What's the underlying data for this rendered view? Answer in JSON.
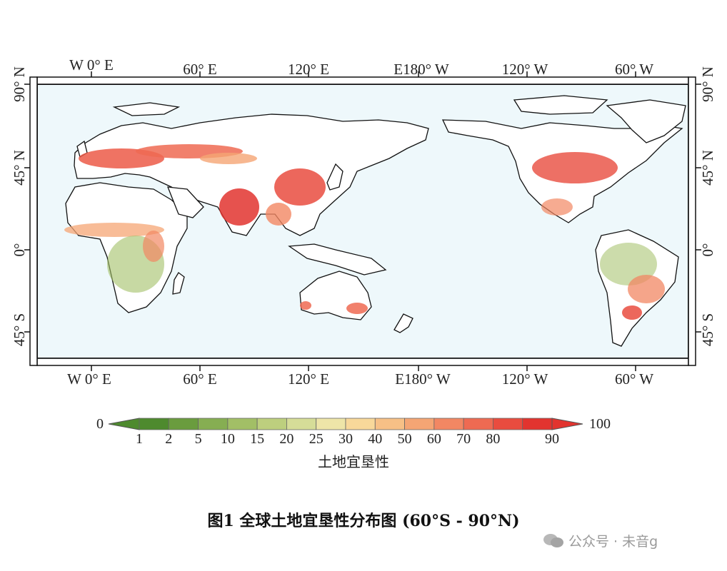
{
  "map": {
    "top_axis_labels": [
      "W 0° E",
      "60° E",
      "120° E",
      "E180° W",
      "120° W",
      "60° W"
    ],
    "bottom_axis_labels": [
      "W 0° E",
      "60° E",
      "120° E",
      "E180° W",
      "120° W",
      "60° W"
    ],
    "left_axis_labels": [
      "90° N",
      "45° N",
      "0°",
      "45° S"
    ],
    "right_axis_labels": [
      "90° N",
      "45° N",
      "0°",
      "45° S"
    ],
    "colors": {
      "ocean": "#eef8fb",
      "coast": "#111111",
      "no_data_land": "#ffffff"
    }
  },
  "legend": {
    "min_label": "0",
    "max_label": "100",
    "tick_labels": [
      "1",
      "2",
      "5",
      "10",
      "15",
      "20",
      "25",
      "30",
      "40",
      "50",
      "60",
      "70",
      "80",
      "90"
    ],
    "colors": [
      "#4e8a2e",
      "#6a9c3e",
      "#86ae52",
      "#a2bf66",
      "#bdcf7e",
      "#d6dd98",
      "#eee5a8",
      "#f8d89a",
      "#f7c086",
      "#f5a574",
      "#f28763",
      "#ee6a52",
      "#e94c3f",
      "#e2342f"
    ],
    "title": "土地宜垦性"
  },
  "caption": "图1  全球土地宜垦性分布图 (60°S - 90°N)",
  "watermark": "公众号 · 未音g"
}
